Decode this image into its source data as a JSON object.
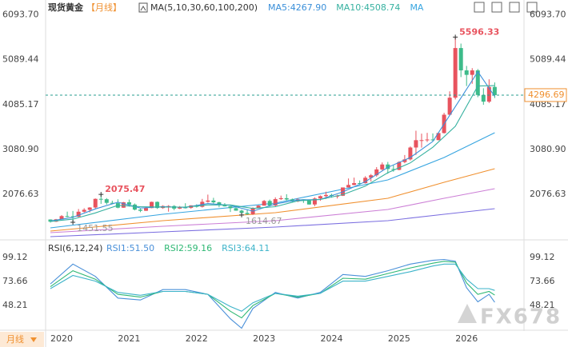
{
  "chart_data": [
    {
      "type": "candlestick",
      "title": "现货黄金",
      "period": "【月线】",
      "indicator": "MA(5,10,30,60,100,200)",
      "up_color": "#e8535e",
      "down_color": "#3dbb8a",
      "ylim": [
        1093,
        6282
      ],
      "yticks": [
        {
          "value": 6093.7,
          "label": "6093.70"
        },
        5089.44,
        4085.17,
        {
          "value": 3080.9,
          "label": "3080.90"
        },
        2076.63
      ],
      "categories": [
        null,
        null,
        "2020",
        null,
        null,
        null,
        null,
        null,
        null,
        null,
        null,
        null,
        null,
        null,
        "2021",
        null,
        null,
        null,
        null,
        null,
        null,
        null,
        null,
        null,
        null,
        null,
        "2022",
        null,
        null,
        null,
        null,
        null,
        null,
        null,
        null,
        null,
        null,
        null,
        "2023",
        null,
        null,
        null,
        null,
        null,
        null,
        null,
        null,
        null,
        null,
        null,
        "2024",
        null,
        null,
        null,
        null,
        null,
        null,
        null,
        null,
        null,
        null,
        null,
        "2025",
        null,
        null,
        null,
        null,
        null,
        null,
        null,
        null,
        null,
        null,
        null,
        "2026",
        null,
        null,
        null,
        null,
        null
      ],
      "candles": [
        [
          1513,
          1516,
          1445,
          1464
        ],
        [
          1464,
          1525,
          1458,
          1517
        ],
        [
          1517,
          1611,
          1517,
          1589
        ],
        [
          1589,
          1689,
          1563,
          1585
        ],
        [
          1585,
          1704,
          1451.55,
          1577
        ],
        [
          1577,
          1748,
          1567,
          1687
        ],
        [
          1687,
          1765,
          1670,
          1730
        ],
        [
          1730,
          1789,
          1671,
          1781
        ],
        [
          1781,
          1984,
          1757,
          1975
        ],
        [
          1975,
          2075.47,
          1863,
          1967
        ],
        [
          1967,
          1992,
          1848,
          1886
        ],
        [
          1886,
          1933,
          1859,
          1879
        ],
        [
          1879,
          1965,
          1764,
          1777
        ],
        [
          1777,
          1906,
          1775,
          1898
        ],
        [
          1898,
          1959,
          1802,
          1847
        ],
        [
          1847,
          1871,
          1717,
          1734
        ],
        [
          1734,
          1755,
          1677,
          1708
        ],
        [
          1708,
          1798,
          1705,
          1769
        ],
        [
          1769,
          1913,
          1765,
          1907
        ],
        [
          1907,
          1916,
          1750,
          1770
        ],
        [
          1770,
          1832,
          1751,
          1814
        ],
        [
          1814,
          1834,
          1688,
          1814
        ],
        [
          1814,
          1834,
          1721,
          1757
        ],
        [
          1757,
          1814,
          1746,
          1783
        ],
        [
          1783,
          1877,
          1759,
          1774
        ],
        [
          1774,
          1831,
          1753,
          1829
        ],
        [
          1829,
          1853,
          1780,
          1797
        ],
        [
          1797,
          1974,
          1781,
          1909
        ],
        [
          1909,
          2070,
          1890,
          1937
        ],
        [
          1937,
          1998,
          1872,
          1897
        ],
        [
          1897,
          1910,
          1787,
          1837
        ],
        [
          1837,
          1879,
          1805,
          1807
        ],
        [
          1807,
          1814,
          1681,
          1766
        ],
        [
          1766,
          1808,
          1709,
          1711
        ],
        [
          1711,
          1735,
          1614.67,
          1660
        ],
        [
          1660,
          1730,
          1617,
          1633
        ],
        [
          1633,
          1786,
          1616,
          1768
        ],
        [
          1768,
          1833,
          1765,
          1824
        ],
        [
          1824,
          1949,
          1823,
          1928
        ],
        [
          1928,
          1959,
          1804,
          1826
        ],
        [
          1826,
          2009,
          1810,
          1969
        ],
        [
          1969,
          2048,
          1949,
          1990
        ],
        [
          1990,
          2079,
          1932,
          1962
        ],
        [
          1962,
          1983,
          1893,
          1919
        ],
        [
          1919,
          1987,
          1902,
          1965
        ],
        [
          1965,
          1966,
          1884,
          1940
        ],
        [
          1940,
          1953,
          1848,
          1849
        ],
        [
          1849,
          2009,
          1810,
          1983
        ],
        [
          1983,
          2052,
          1931,
          2036
        ],
        [
          2036,
          2135,
          1973,
          2063
        ],
        [
          2063,
          2088,
          2001,
          2039
        ],
        [
          2039,
          2065,
          1984,
          2044
        ],
        [
          2044,
          2222,
          2039,
          2230
        ],
        [
          2230,
          2431,
          2228,
          2286
        ],
        [
          2286,
          2450,
          2277,
          2327
        ],
        [
          2327,
          2387,
          2286,
          2326
        ],
        [
          2326,
          2483,
          2318,
          2447
        ],
        [
          2447,
          2531,
          2364,
          2503
        ],
        [
          2503,
          2685,
          2471,
          2634
        ],
        [
          2634,
          2790,
          2603,
          2744
        ],
        [
          2744,
          2801,
          2537,
          2643
        ],
        [
          2643,
          2726,
          2583,
          2624
        ],
        [
          2624,
          2817,
          2614,
          2798
        ],
        [
          2798,
          2956,
          2772,
          2858
        ],
        [
          2858,
          3148,
          2833,
          3124
        ],
        [
          3124,
          3500,
          2957,
          3288
        ],
        [
          3288,
          3435,
          3121,
          3289
        ],
        [
          3289,
          3452,
          3247,
          3303
        ],
        [
          3303,
          3439,
          3268,
          3290
        ],
        [
          3290,
          3453,
          3282,
          3448
        ],
        [
          3448,
          3900,
          3436,
          3858
        ],
        [
          3858,
          4381,
          3850,
          4239
        ],
        [
          4239,
          5596.33,
          4200,
          5350
        ],
        [
          5350,
          5450,
          4700,
          4850
        ],
        [
          4850,
          4950,
          4500,
          4750
        ],
        [
          4750,
          4900,
          4550,
          4850
        ],
        [
          4850,
          4880,
          4250,
          4300
        ],
        [
          4300,
          4450,
          4080,
          4150
        ],
        [
          4150,
          4650,
          4120,
          4480
        ],
        [
          4480,
          4580,
          4230,
          4296.69
        ]
      ],
      "series": [
        {
          "name": "MA5:4267.90",
          "color": "#3a8fd9",
          "x": [
            0,
            4,
            8,
            12,
            16,
            20,
            24,
            28,
            32,
            36,
            40,
            44,
            48,
            52,
            56,
            60,
            64,
            68,
            72,
            76,
            79
          ],
          "values": [
            1480,
            1560,
            1750,
            1900,
            1770,
            1800,
            1785,
            1870,
            1830,
            1700,
            1860,
            1950,
            1960,
            2130,
            2360,
            2680,
            2900,
            3260,
            4040,
            4820,
            4267.9
          ]
        },
        {
          "name": "MA10:4508.74",
          "color": "#36b1a0",
          "x": [
            0,
            4,
            8,
            12,
            16,
            20,
            24,
            28,
            32,
            36,
            40,
            44,
            48,
            52,
            56,
            60,
            64,
            68,
            72,
            76,
            79
          ],
          "values": [
            1470,
            1520,
            1660,
            1830,
            1800,
            1790,
            1790,
            1840,
            1840,
            1760,
            1800,
            1930,
            1960,
            2070,
            2260,
            2560,
            2780,
            3130,
            3600,
            4500,
            4508.74
          ]
        },
        {
          "name": "MA",
          "color": "#37a5e0",
          "x": [
            0,
            20,
            40,
            60,
            70,
            79
          ],
          "values": [
            1325,
            1629,
            1880,
            2399,
            2900,
            3454
          ]
        },
        {
          "color": "#f0902f",
          "x": [
            0,
            20,
            40,
            60,
            70,
            79
          ],
          "values": [
            1254,
            1486,
            1665,
            1987,
            2345,
            2649
          ]
        },
        {
          "color": "#cc7fd6",
          "x": [
            0,
            20,
            40,
            60,
            70,
            79
          ],
          "values": [
            1218,
            1361,
            1486,
            1737,
            1987,
            2202
          ]
        },
        {
          "color": "#7b6ee0",
          "x": [
            0,
            20,
            40,
            60,
            70,
            79
          ],
          "values": [
            1128,
            1236,
            1343,
            1486,
            1629,
            1755
          ]
        }
      ]
    },
    {
      "type": "line",
      "title": "RSI(6,12,24)",
      "ylim": [
        21.9,
        113.5
      ],
      "yticks": [
        99.12,
        73.66,
        48.21
      ],
      "series": [
        {
          "name": "RSI1:51.50",
          "color": "#4a90d9",
          "x": [
            0,
            4,
            8,
            12,
            16,
            20,
            24,
            28,
            32,
            34,
            36,
            40,
            44,
            48,
            52,
            56,
            60,
            64,
            68,
            70,
            72,
            74,
            76,
            78,
            79
          ],
          "values": [
            71,
            92,
            79,
            56,
            54,
            65,
            65,
            60,
            34,
            24,
            45,
            62,
            56,
            62,
            81,
            79,
            85,
            92,
            96,
            97,
            95,
            67,
            52,
            60,
            51.5
          ]
        },
        {
          "name": "RSI2:59.16",
          "color": "#2fb874",
          "x": [
            0,
            4,
            8,
            12,
            16,
            20,
            24,
            28,
            32,
            34,
            36,
            40,
            44,
            48,
            52,
            56,
            60,
            64,
            68,
            70,
            72,
            74,
            76,
            78,
            79
          ],
          "values": [
            68,
            85,
            76,
            60,
            57,
            63,
            63,
            60,
            42,
            35,
            48,
            61,
            57,
            61,
            77,
            76,
            82,
            88,
            93,
            95,
            94,
            72,
            60,
            63,
            59.16
          ]
        },
        {
          "name": "RSI3:64.11",
          "color": "#3cb3c9",
          "x": [
            0,
            4,
            8,
            12,
            16,
            20,
            24,
            28,
            32,
            34,
            36,
            40,
            44,
            48,
            52,
            56,
            60,
            64,
            68,
            70,
            72,
            74,
            76,
            78,
            79
          ],
          "values": [
            66,
            80,
            74,
            62,
            59,
            63,
            63,
            60,
            47,
            42,
            51,
            61,
            58,
            61,
            74,
            74,
            79,
            84,
            90,
            92,
            92,
            76,
            66,
            66,
            64.11
          ]
        }
      ]
    }
  ],
  "badge": "月线",
  "watermark": "FX678"
}
